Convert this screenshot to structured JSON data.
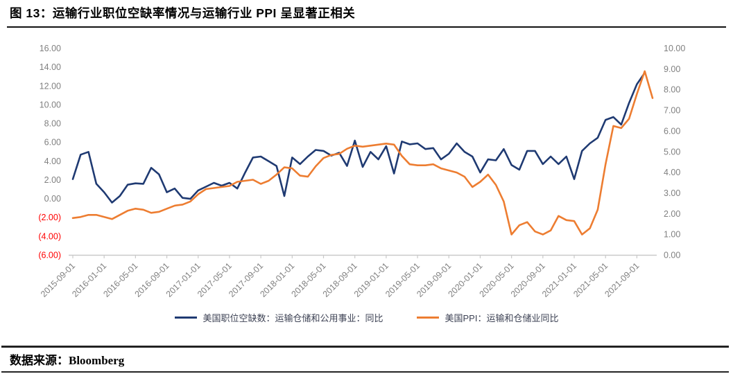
{
  "page": {
    "title": "图 13：运输行业职位空缺率情况与运输行业 PPI 呈显著正相关",
    "source_label": "数据来源：Bloomberg"
  },
  "chart_data": {
    "type": "line",
    "title": "",
    "grid": false,
    "legend_position": "bottom",
    "x": [
      "2015-09",
      "2015-10",
      "2015-11",
      "2015-12",
      "2016-01",
      "2016-02",
      "2016-03",
      "2016-04",
      "2016-05",
      "2016-06",
      "2016-07",
      "2016-08",
      "2016-09",
      "2016-10",
      "2016-11",
      "2016-12",
      "2017-01",
      "2017-02",
      "2017-03",
      "2017-04",
      "2017-05",
      "2017-06",
      "2017-07",
      "2017-08",
      "2017-09",
      "2017-10",
      "2017-11",
      "2017-12",
      "2018-01",
      "2018-02",
      "2018-03",
      "2018-04",
      "2018-05",
      "2018-06",
      "2018-07",
      "2018-08",
      "2018-09",
      "2018-10",
      "2018-11",
      "2018-12",
      "2019-01",
      "2019-02",
      "2019-03",
      "2019-04",
      "2019-05",
      "2019-06",
      "2019-07",
      "2019-08",
      "2019-09",
      "2019-10",
      "2019-11",
      "2019-12",
      "2020-01",
      "2020-02",
      "2020-03",
      "2020-04",
      "2020-05",
      "2020-06",
      "2020-07",
      "2020-08",
      "2020-09",
      "2020-10",
      "2020-11",
      "2020-12",
      "2021-01",
      "2021-02",
      "2021-03",
      "2021-04",
      "2021-05",
      "2021-06",
      "2021-07",
      "2021-08",
      "2021-09",
      "2021-10",
      "2021-11"
    ],
    "x_tick_labels": [
      "2015-09-01",
      "2016-01-01",
      "2016-05-01",
      "2016-09-01",
      "2017-01-01",
      "2017-05-01",
      "2017-09-01",
      "2018-01-01",
      "2018-05-01",
      "2018-09-01",
      "2019-01-01",
      "2019-05-01",
      "2019-09-01",
      "2020-01-01",
      "2020-05-01",
      "2020-09-01",
      "2021-01-01",
      "2021-05-01",
      "2021-09-01"
    ],
    "left_axis": {
      "min": -6,
      "max": 16,
      "step": 2,
      "tick_labels": [
        "16.00",
        "14.00",
        "12.00",
        "10.00",
        "8.00",
        "6.00",
        "4.00",
        "2.00",
        "0.00",
        "(2.00)",
        "(4.00)",
        "(6.00)"
      ]
    },
    "right_axis": {
      "min": 0,
      "max": 10,
      "step": 1,
      "tick_labels": [
        "10.00",
        "9.00",
        "8.00",
        "7.00",
        "6.00",
        "5.00",
        "4.00",
        "3.00",
        "2.00",
        "1.00",
        "0.00"
      ]
    },
    "series": [
      {
        "name": "美国职位空缺数：运输仓储和公用事业：同比",
        "axis": "left",
        "color": "#1F3A72",
        "values": [
          2.1,
          4.7,
          5.0,
          1.6,
          0.7,
          -0.4,
          0.3,
          1.5,
          1.65,
          1.6,
          3.3,
          2.6,
          0.7,
          1.1,
          0.1,
          0.0,
          0.9,
          1.3,
          1.7,
          1.4,
          1.7,
          1.1,
          2.8,
          4.4,
          4.5,
          4.0,
          3.5,
          0.3,
          4.4,
          3.7,
          4.5,
          5.2,
          5.1,
          4.6,
          4.9,
          3.5,
          6.2,
          3.4,
          5.0,
          4.2,
          5.6,
          2.7,
          6.1,
          5.8,
          5.9,
          5.3,
          5.4,
          4.2,
          4.8,
          5.9,
          5.0,
          4.5,
          2.8,
          4.2,
          4.1,
          5.3,
          3.6,
          3.1,
          5.1,
          5.1,
          3.7,
          4.5,
          3.7,
          4.5,
          2.1,
          5.1,
          5.9,
          6.5,
          8.4,
          8.7,
          7.9,
          10.2,
          12.2,
          13.4,
          null
        ]
      },
      {
        "name": "美国PPI：运输和仓储业同比",
        "axis": "right",
        "color": "#ED7D31",
        "values": [
          1.8,
          1.85,
          1.95,
          1.95,
          1.85,
          1.75,
          1.95,
          2.15,
          2.25,
          2.2,
          2.05,
          2.1,
          2.25,
          2.4,
          2.45,
          2.6,
          2.95,
          3.2,
          3.25,
          3.3,
          3.35,
          3.55,
          3.6,
          3.65,
          3.45,
          3.6,
          3.9,
          4.25,
          4.2,
          3.85,
          3.8,
          4.3,
          4.7,
          4.85,
          4.9,
          5.15,
          5.3,
          5.25,
          5.3,
          5.35,
          5.4,
          5.35,
          4.8,
          4.4,
          4.35,
          4.35,
          4.4,
          4.2,
          4.1,
          4.0,
          3.8,
          3.3,
          3.55,
          3.9,
          3.4,
          2.6,
          1.0,
          1.45,
          1.6,
          1.15,
          1.0,
          1.2,
          1.9,
          1.7,
          1.65,
          1.0,
          1.3,
          2.2,
          4.4,
          6.25,
          6.15,
          6.6,
          7.8,
          8.9,
          7.6
        ]
      }
    ],
    "style": {
      "axis_label_gray": "#808080",
      "negative_label_red": "#FF0000",
      "axis_line_color": "#C9C9C9",
      "label_font_px": 12.5
    }
  }
}
